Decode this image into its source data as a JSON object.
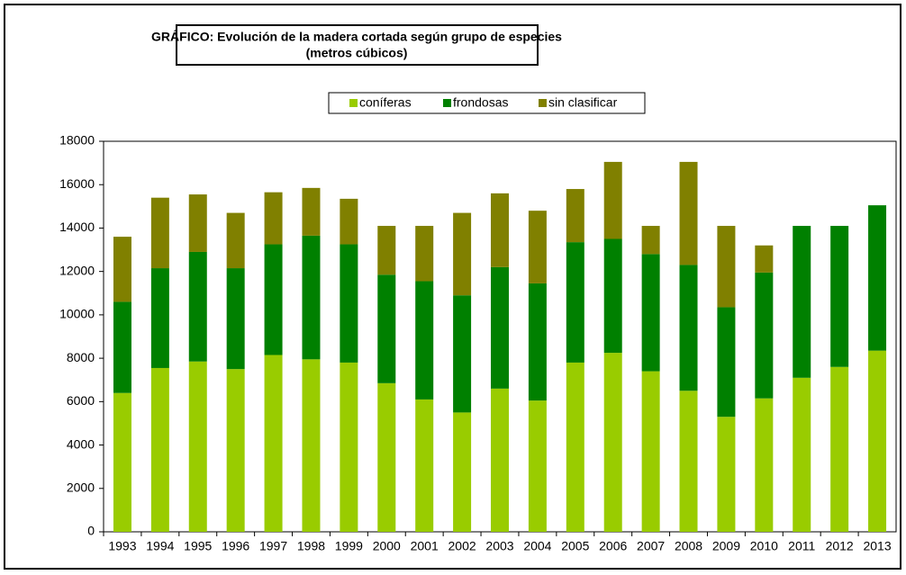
{
  "chart_data": {
    "type": "stacked_bar",
    "title": "GRÁFICO: Evolución de la  madera cortada según grupo de especies",
    "subtitle": "(metros cúbicos)",
    "categories": [
      "1993",
      "1994",
      "1995",
      "1996",
      "1997",
      "1998",
      "1999",
      "2000",
      "2001",
      "2002",
      "2003",
      "2004",
      "2005",
      "2006",
      "2007",
      "2008",
      "2009",
      "2010",
      "2011",
      "2012",
      "2013"
    ],
    "series": [
      {
        "name": "coníferas",
        "color": "#99cc00",
        "values": [
          6400,
          7550,
          7850,
          7500,
          8150,
          7950,
          7800,
          6850,
          6100,
          5500,
          6600,
          6050,
          7800,
          8250,
          7400,
          6500,
          5300,
          6150,
          7100,
          7600,
          8350
        ]
      },
      {
        "name": "frondosas",
        "color": "#008000",
        "values": [
          4200,
          4600,
          5050,
          4650,
          5100,
          5700,
          5450,
          5000,
          5450,
          5400,
          5600,
          5400,
          5550,
          5250,
          5400,
          5800,
          5050,
          5800,
          7000,
          6500,
          6700
        ]
      },
      {
        "name": "sin clasificar",
        "color": "#808000",
        "values": [
          3000,
          3250,
          2650,
          2550,
          2400,
          2200,
          2100,
          2250,
          2550,
          3800,
          3400,
          3350,
          2450,
          3550,
          1300,
          4750,
          3750,
          1250,
          0,
          0,
          0
        ]
      }
    ],
    "ylim": [
      0,
      18000
    ],
    "yticks": [
      0,
      2000,
      4000,
      6000,
      8000,
      10000,
      12000,
      14000,
      16000,
      18000
    ],
    "grid": false,
    "legend": "top"
  }
}
